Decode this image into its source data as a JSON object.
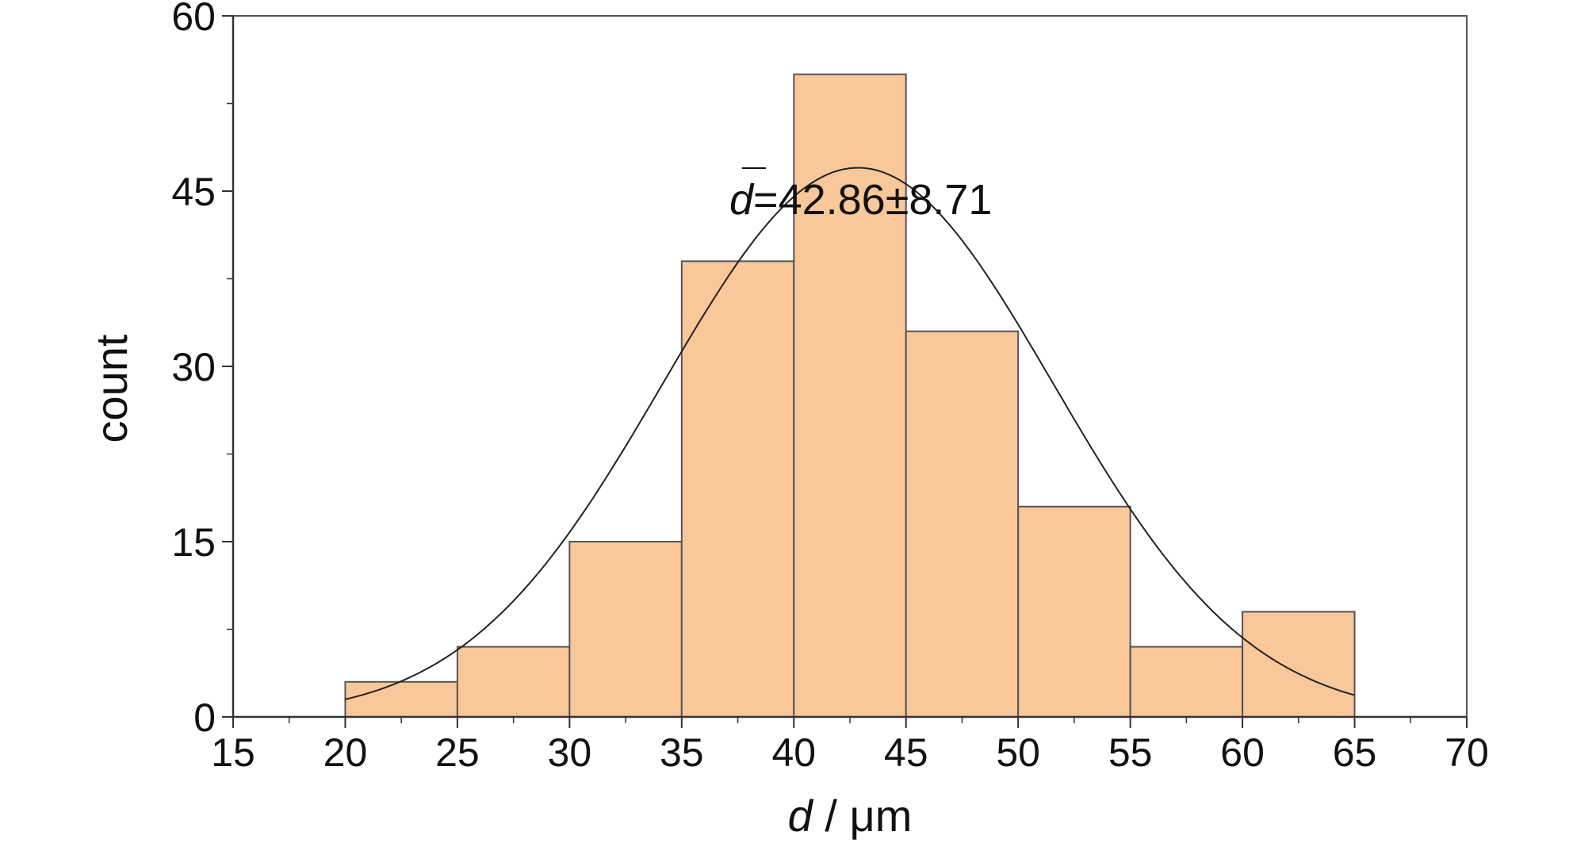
{
  "chart_data": {
    "type": "bar",
    "subtype": "histogram",
    "bins": [
      {
        "from": 20,
        "to": 25,
        "count": 3
      },
      {
        "from": 25,
        "to": 30,
        "count": 6
      },
      {
        "from": 30,
        "to": 35,
        "count": 15
      },
      {
        "from": 35,
        "to": 40,
        "count": 39
      },
      {
        "from": 40,
        "to": 45,
        "count": 55
      },
      {
        "from": 45,
        "to": 50,
        "count": 33
      },
      {
        "from": 50,
        "to": 55,
        "count": 18
      },
      {
        "from": 55,
        "to": 60,
        "count": 6
      },
      {
        "from": 60,
        "to": 65,
        "count": 9
      }
    ],
    "fit": {
      "type": "normal",
      "mean": 42.86,
      "sd": 8.71,
      "peak": 47,
      "x_range": [
        20,
        65
      ]
    },
    "xlabel_italic": "d",
    "xlabel_rest": " / μm",
    "ylabel": "count",
    "xlim": [
      15,
      70
    ],
    "ylim": [
      0,
      60
    ],
    "xticks": [
      "15",
      "20",
      "25",
      "30",
      "35",
      "40",
      "45",
      "50",
      "55",
      "60",
      "65",
      "70"
    ],
    "yticks": [
      "0",
      "15",
      "30",
      "45",
      "60"
    ],
    "annotation": {
      "symbol": "d",
      "text": "=42.86±8.71"
    },
    "grid": false,
    "colors": {
      "bar_fill": "#f8c79a",
      "bar_stroke": "#555555",
      "curve": "#222222",
      "axis": "#333333"
    }
  }
}
